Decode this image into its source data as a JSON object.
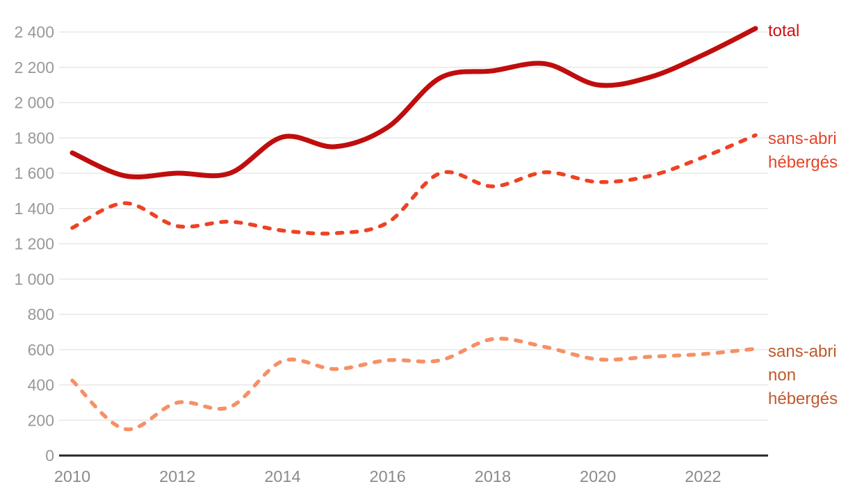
{
  "chart_data": {
    "type": "line",
    "x": [
      2010,
      2011,
      2012,
      2013,
      2014,
      2015,
      2016,
      2017,
      2018,
      2019,
      2020,
      2021,
      2022,
      2023
    ],
    "x_tick_labels": [
      "2010",
      "2012",
      "2014",
      "2016",
      "2018",
      "2020",
      "2022"
    ],
    "x_tick_years": [
      2010,
      2012,
      2014,
      2016,
      2018,
      2020,
      2022
    ],
    "y_tick_labels": [
      "0",
      "200",
      "400",
      "600",
      "800",
      "1 000",
      "1 200",
      "1 400",
      "1 600",
      "1 800",
      "2 000",
      "2 200",
      "2 400"
    ],
    "ylim": [
      0,
      2400
    ],
    "y_tick_step": 200,
    "grid": true,
    "legend_position": "right",
    "series": [
      {
        "name": "total",
        "slug": "total",
        "label": "total",
        "values": [
          1715,
          1585,
          1600,
          1600,
          1805,
          1750,
          1860,
          2140,
          2180,
          2220,
          2100,
          2145,
          2270,
          2420
        ],
        "color": "#c00d0d",
        "label_color": "#d41010",
        "style": "solid",
        "width": 7
      },
      {
        "name": "sans-abri hébergés",
        "slug": "sans-abri-heberges",
        "label": "sans-abri\nhébergés",
        "values": [
          1290,
          1430,
          1300,
          1325,
          1275,
          1260,
          1320,
          1600,
          1525,
          1605,
          1550,
          1585,
          1690,
          1815
        ],
        "color": "#ee4224",
        "label_color": "#e8432a",
        "style": "dashed",
        "width": 5.5
      },
      {
        "name": "sans-abri non hébergés",
        "slug": "sans-abri-non-heberges",
        "label": "sans-abri\nnon\nhébergés",
        "values": [
          425,
          150,
          300,
          275,
          535,
          490,
          540,
          540,
          660,
          615,
          545,
          560,
          575,
          605
        ],
        "color": "#f69066",
        "label_color": "#c05a2d",
        "style": "dashed",
        "width": 5.5
      }
    ],
    "colors": {
      "grid": "#e7e7e7",
      "axis": "#262626",
      "y_tick_text": "#989898",
      "x_tick_text": "#8a8a8a",
      "background": "#ffffff"
    }
  }
}
